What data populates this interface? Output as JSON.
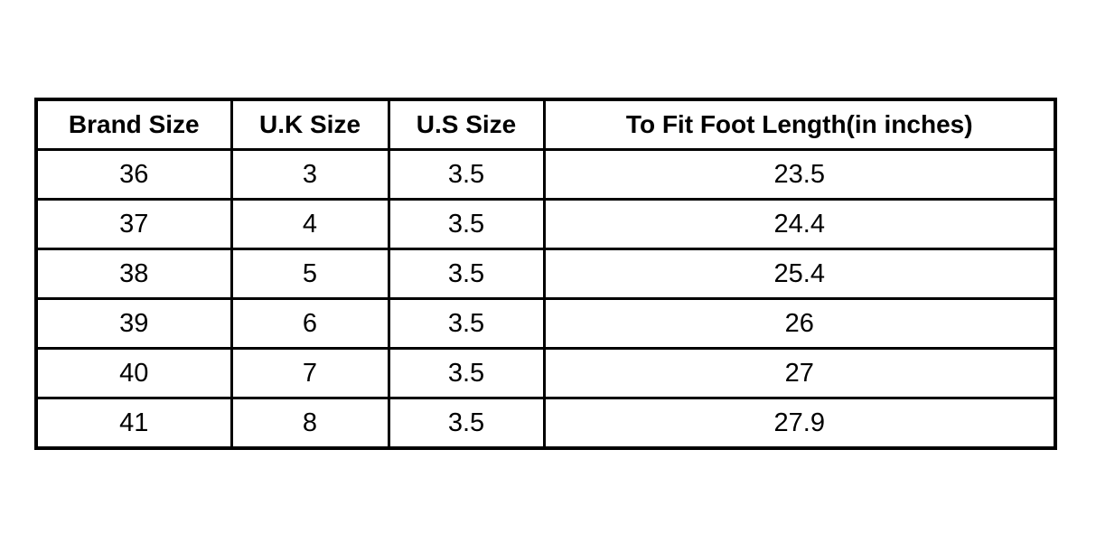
{
  "table": {
    "headers": [
      "Brand Size",
      "U.K Size",
      "U.S Size",
      "To Fit Foot Length(in inches)"
    ],
    "rows": [
      [
        "36",
        "3",
        "3.5",
        "23.5"
      ],
      [
        "37",
        "4",
        "3.5",
        "24.4"
      ],
      [
        "38",
        "5",
        "3.5",
        "25.4"
      ],
      [
        "39",
        "6",
        "3.5",
        "26"
      ],
      [
        "40",
        "7",
        "3.5",
        "27"
      ],
      [
        "41",
        "8",
        "3.5",
        "27.9"
      ]
    ]
  }
}
